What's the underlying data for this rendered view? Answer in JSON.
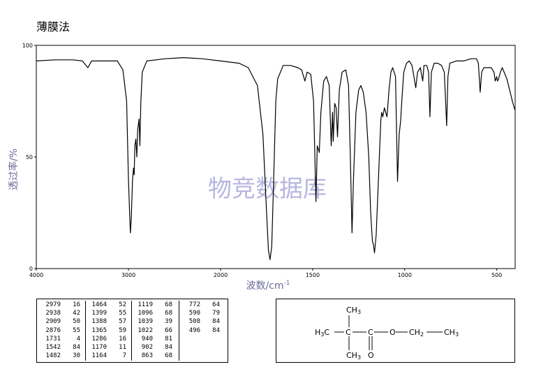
{
  "title": "薄膜法",
  "watermark": "物竞数据库",
  "chart_data": {
    "type": "line",
    "xlabel": "波数/cm",
    "xlabel_sup": "-1",
    "ylabel": "透过率/%",
    "xlim": [
      4000,
      400
    ],
    "ylim": [
      0,
      100
    ],
    "xticks": [
      4000,
      3000,
      2000,
      1500,
      1000,
      500
    ],
    "yticks": [
      0,
      50,
      100
    ],
    "grid": false,
    "series": [
      {
        "values": [
          [
            4000,
            93
          ],
          [
            3800,
            93.5
          ],
          [
            3600,
            93.5
          ],
          [
            3500,
            93
          ],
          [
            3440,
            90
          ],
          [
            3400,
            93
          ],
          [
            3250,
            93
          ],
          [
            3120,
            93
          ],
          [
            3060,
            89
          ],
          [
            3020,
            75
          ],
          [
            3000,
            40
          ],
          [
            2985,
            22
          ],
          [
            2979,
            16
          ],
          [
            2970,
            22
          ],
          [
            2955,
            40
          ],
          [
            2945,
            45
          ],
          [
            2938,
            42
          ],
          [
            2930,
            55
          ],
          [
            2920,
            58
          ],
          [
            2909,
            50
          ],
          [
            2900,
            62
          ],
          [
            2885,
            67
          ],
          [
            2876,
            55
          ],
          [
            2865,
            75
          ],
          [
            2850,
            88
          ],
          [
            2800,
            93
          ],
          [
            2600,
            94
          ],
          [
            2400,
            94.5
          ],
          [
            2200,
            94
          ],
          [
            2000,
            93
          ],
          [
            1900,
            92
          ],
          [
            1850,
            90
          ],
          [
            1800,
            82
          ],
          [
            1770,
            60
          ],
          [
            1750,
            25
          ],
          [
            1740,
            8
          ],
          [
            1731,
            4
          ],
          [
            1722,
            10
          ],
          [
            1710,
            45
          ],
          [
            1700,
            75
          ],
          [
            1690,
            85
          ],
          [
            1660,
            91
          ],
          [
            1620,
            91
          ],
          [
            1580,
            90
          ],
          [
            1560,
            89
          ],
          [
            1542,
            84
          ],
          [
            1530,
            88
          ],
          [
            1510,
            87
          ],
          [
            1495,
            75
          ],
          [
            1482,
            30
          ],
          [
            1475,
            55
          ],
          [
            1464,
            52
          ],
          [
            1455,
            70
          ],
          [
            1440,
            84
          ],
          [
            1425,
            86
          ],
          [
            1410,
            82
          ],
          [
            1399,
            55
          ],
          [
            1392,
            70
          ],
          [
            1388,
            57
          ],
          [
            1380,
            74
          ],
          [
            1372,
            72
          ],
          [
            1365,
            59
          ],
          [
            1355,
            80
          ],
          [
            1340,
            88
          ],
          [
            1320,
            89
          ],
          [
            1305,
            82
          ],
          [
            1295,
            50
          ],
          [
            1286,
            16
          ],
          [
            1278,
            40
          ],
          [
            1265,
            70
          ],
          [
            1250,
            80
          ],
          [
            1238,
            82
          ],
          [
            1225,
            79
          ],
          [
            1210,
            70
          ],
          [
            1195,
            50
          ],
          [
            1185,
            25
          ],
          [
            1175,
            12
          ],
          [
            1170,
            11
          ],
          [
            1164,
            7
          ],
          [
            1155,
            15
          ],
          [
            1140,
            45
          ],
          [
            1130,
            66
          ],
          [
            1125,
            70
          ],
          [
            1119,
            68
          ],
          [
            1110,
            72
          ],
          [
            1096,
            68
          ],
          [
            1085,
            80
          ],
          [
            1075,
            88
          ],
          [
            1065,
            90
          ],
          [
            1050,
            86
          ],
          [
            1039,
            39
          ],
          [
            1030,
            60
          ],
          [
            1022,
            66
          ],
          [
            1015,
            76
          ],
          [
            1005,
            88
          ],
          [
            990,
            92
          ],
          [
            975,
            93
          ],
          [
            960,
            91
          ],
          [
            940,
            81
          ],
          [
            930,
            88
          ],
          [
            915,
            90
          ],
          [
            902,
            84
          ],
          [
            895,
            91
          ],
          [
            880,
            91
          ],
          [
            870,
            88
          ],
          [
            863,
            68
          ],
          [
            855,
            88
          ],
          [
            840,
            92
          ],
          [
            820,
            92
          ],
          [
            800,
            91
          ],
          [
            785,
            88
          ],
          [
            772,
            64
          ],
          [
            765,
            86
          ],
          [
            755,
            92
          ],
          [
            720,
            93
          ],
          [
            680,
            93
          ],
          [
            640,
            94
          ],
          [
            610,
            94
          ],
          [
            600,
            92
          ],
          [
            590,
            79
          ],
          [
            582,
            88
          ],
          [
            570,
            90
          ],
          [
            550,
            90
          ],
          [
            530,
            90
          ],
          [
            515,
            88
          ],
          [
            508,
            84
          ],
          [
            500,
            86
          ],
          [
            496,
            84
          ],
          [
            490,
            85
          ],
          [
            480,
            88
          ],
          [
            470,
            90
          ],
          [
            460,
            88
          ],
          [
            445,
            85
          ],
          [
            430,
            80
          ],
          [
            415,
            75
          ],
          [
            405,
            72
          ],
          [
            400,
            71
          ]
        ]
      }
    ]
  },
  "peak_table": [
    [
      [
        2979,
        16
      ],
      [
        2938,
        42
      ],
      [
        2909,
        50
      ],
      [
        2876,
        55
      ],
      [
        1731,
        4
      ],
      [
        1542,
        84
      ],
      [
        1482,
        30
      ]
    ],
    [
      [
        1464,
        52
      ],
      [
        1399,
        55
      ],
      [
        1388,
        57
      ],
      [
        1365,
        59
      ],
      [
        1286,
        16
      ],
      [
        1170,
        11
      ],
      [
        1164,
        7
      ]
    ],
    [
      [
        1119,
        68
      ],
      [
        1096,
        68
      ],
      [
        1039,
        39
      ],
      [
        1022,
        66
      ],
      [
        940,
        81
      ],
      [
        902,
        84
      ],
      [
        863,
        68
      ]
    ],
    [
      [
        772,
        64
      ],
      [
        590,
        79
      ],
      [
        508,
        84
      ],
      [
        496,
        84
      ]
    ]
  ],
  "structure": {
    "top_group": "CH",
    "top_sub": "3",
    "left_group": "H",
    "left_sub": "3",
    "left_c": "C",
    "center_c": "C",
    "carbonyl_c": "C",
    "bottom_group": "CH",
    "bottom_sub": "3",
    "carbonyl_o": "O",
    "ester_o": "O",
    "ch2_group": "CH",
    "ch2_sub": "2",
    "end_group": "CH",
    "end_sub": "3"
  },
  "colors": {
    "line": "#000000",
    "axis": "#000000",
    "watermark": "#b8b6e0",
    "ylabel": "#6b6b9a"
  }
}
